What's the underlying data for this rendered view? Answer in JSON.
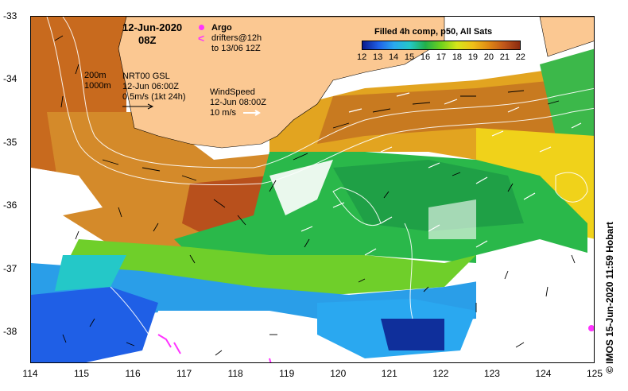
{
  "map": {
    "date_title": "12-Jun-2020",
    "time_title": "08Z",
    "argo_label": "Argo",
    "drifters_line1": "drifters@12h",
    "drifters_line2": "to 13/06 12Z",
    "isobath_200": "200m",
    "isobath_1000": "1000m",
    "current_line1": "NRT00 GSL",
    "current_line2": "12-Jun 06:00Z",
    "current_line3": "0.5m/s (1kt 24h)",
    "wind_line1": "WindSpeed",
    "wind_line2": "12-Jun 08:00Z",
    "wind_line3": "10 m/s",
    "colorbar_title": "Filled 4h comp, p50, All Sats",
    "colorbar_ticks": [
      "12",
      "13",
      "14",
      "15",
      "16",
      "17",
      "18",
      "19",
      "20",
      "21",
      "22"
    ],
    "colorbar_colors": [
      "#0a1a8c",
      "#1f5fe6",
      "#2aa8f0",
      "#24c8c8",
      "#22b04a",
      "#6fd21c",
      "#d6e61a",
      "#f0c018",
      "#e08a14",
      "#c0561a",
      "#8a2a10"
    ],
    "y_ticks": [
      "-33",
      "-34",
      "-35",
      "-36",
      "-37",
      "-38"
    ],
    "x_ticks": [
      "114",
      "115",
      "116",
      "117",
      "118",
      "119",
      "120",
      "121",
      "122",
      "123",
      "124",
      "125"
    ],
    "credit": "© IMOS 15-Jun-2020 11:59 Hobart",
    "land_color": "#fbc892"
  }
}
